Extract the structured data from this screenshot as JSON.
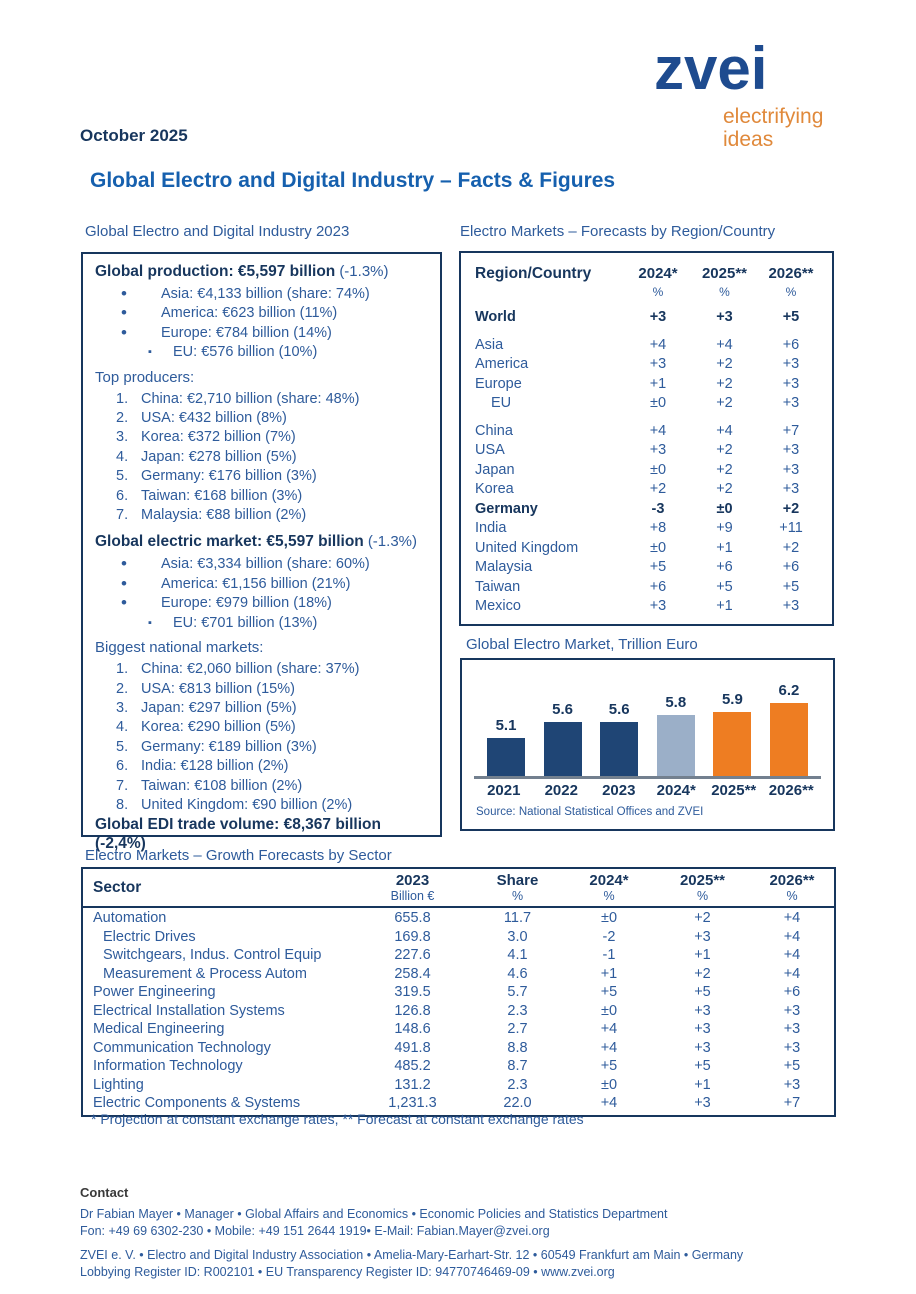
{
  "date": "October 2025",
  "logo": {
    "wordmark": "zvei",
    "tagline": [
      "electrifying",
      "ideas"
    ],
    "blue": "#1E4B8F",
    "orange": "#E0893B"
  },
  "title": "Global Electro and Digital Industry – Facts & Figures",
  "left_panel": {
    "heading": "Global Electro and Digital Industry 2023",
    "sections": [
      {
        "title_bold": "Global production: €5,597 billion",
        "title_suffix": "(-1.3%)",
        "bullets": [
          "Asia: €4,133 billion (share: 74%)",
          "America: €623 billion (11%)",
          "Europe: €784 billion (14%)"
        ],
        "sub_bullets": [
          "EU: €576 billion (10%)"
        ],
        "list_label": "Top producers:",
        "numbered": [
          "China: €2,710 billion (share: 48%)",
          "USA: €432 billion (8%)",
          "Korea: €372 billion (7%)",
          "Japan: €278 billion (5%)",
          "Germany: €176 billion (3%)",
          "Taiwan: €168 billion (3%)",
          "Malaysia: €88 billion (2%)"
        ]
      },
      {
        "title_bold": "Global electric market: €5,597 billion",
        "title_suffix": "(-1.3%)",
        "bullets": [
          "Asia: €3,334 billion (share: 60%)",
          "America: €1,156 billion (21%)",
          "Europe: €979 billion (18%)"
        ],
        "sub_bullets": [
          "EU: €701 billion (13%)"
        ],
        "list_label": "Biggest national markets:",
        "numbered": [
          "China: €2,060 billion (share: 37%)",
          "USA: €813 billion (15%)",
          "Japan: €297 billion (5%)",
          "Korea: €290 billion (5%)",
          "Germany: €189 billion (3%)",
          "India: €128 billion (2%)",
          "Taiwan: €108 billion (2%)",
          "United Kingdom: €90 billion (2%)"
        ]
      }
    ],
    "trade_line": "Global EDI trade volume: €8,367 billion (-2,4%)"
  },
  "region_table": {
    "heading": "Electro Markets – Forecasts by Region/Country",
    "col_label": "Region/Country",
    "year_cols": [
      {
        "label": "2024*",
        "unit": "%"
      },
      {
        "label": "2025**",
        "unit": "%"
      },
      {
        "label": "2026**",
        "unit": "%"
      }
    ],
    "rows": [
      {
        "label": "World",
        "bold": true,
        "gap_before": true,
        "values": [
          "+3",
          "+3",
          "+5"
        ]
      },
      {
        "label": "Asia",
        "gap_before": true,
        "values": [
          "+4",
          "+4",
          "+6"
        ]
      },
      {
        "label": "America",
        "values": [
          "+3",
          "+2",
          "+3"
        ]
      },
      {
        "label": "Europe",
        "values": [
          "+1",
          "+2",
          "+3"
        ]
      },
      {
        "label": "EU",
        "indent": true,
        "values": [
          "±0",
          "+2",
          "+3"
        ]
      },
      {
        "label": "China",
        "gap_before": true,
        "values": [
          "+4",
          "+4",
          "+7"
        ]
      },
      {
        "label": "USA",
        "values": [
          "+3",
          "+2",
          "+3"
        ]
      },
      {
        "label": "Japan",
        "values": [
          "±0",
          "+2",
          "+3"
        ]
      },
      {
        "label": "Korea",
        "values": [
          "+2",
          "+2",
          "+3"
        ]
      },
      {
        "label": "Germany",
        "bold": true,
        "values": [
          "-3",
          "±0",
          "+2"
        ]
      },
      {
        "label": "India",
        "values": [
          "+8",
          "+9",
          "+11"
        ]
      },
      {
        "label": "United Kingdom",
        "values": [
          "±0",
          "+1",
          "+2"
        ]
      },
      {
        "label": "Malaysia",
        "values": [
          "+5",
          "+6",
          "+6"
        ]
      },
      {
        "label": "Taiwan",
        "values": [
          "+6",
          "+5",
          "+5"
        ]
      },
      {
        "label": "Mexico",
        "values": [
          "+3",
          "+1",
          "+3"
        ]
      }
    ]
  },
  "chart_data": {
    "type": "bar",
    "title": "Global Electro Market, Trillion Euro",
    "categories": [
      "2021",
      "2022",
      "2023",
      "2024*",
      "2025**",
      "2026**"
    ],
    "values": [
      5.1,
      5.6,
      5.6,
      5.8,
      5.9,
      6.2
    ],
    "bar_colors": [
      "#1F4575",
      "#1F4575",
      "#1F4575",
      "#9BAFC8",
      "#EE7D22",
      "#EE7D22"
    ],
    "ylim": [
      3.9,
      6.6
    ],
    "grid": false,
    "value_labels": true,
    "legend": "none",
    "source": "Source: National Statistical Offices and ZVEI"
  },
  "sector_table": {
    "heading": "Electro Markets – Growth Forecasts by Sector",
    "col_label": "Sector",
    "columns": [
      {
        "label": "2023",
        "unit": "Billion €"
      },
      {
        "label": "Share",
        "unit": "%"
      },
      {
        "label": "2024*",
        "unit": "%"
      },
      {
        "label": "2025**",
        "unit": "%"
      },
      {
        "label": "2026**",
        "unit": "%"
      }
    ],
    "rows": [
      {
        "label": "Automation",
        "values": [
          "655.8",
          "11.7",
          "±0",
          "+2",
          "+4"
        ]
      },
      {
        "label": "Electric Drives",
        "indent": true,
        "values": [
          "169.8",
          "3.0",
          "-2",
          "+3",
          "+4"
        ]
      },
      {
        "label": "Switchgears, Indus. Control Equip",
        "indent": true,
        "values": [
          "227.6",
          "4.1",
          "-1",
          "+1",
          "+4"
        ]
      },
      {
        "label": "Measurement & Process Autom",
        "indent": true,
        "values": [
          "258.4",
          "4.6",
          "+1",
          "+2",
          "+4"
        ]
      },
      {
        "label": "Power Engineering",
        "values": [
          "319.5",
          "5.7",
          "+5",
          "+5",
          "+6"
        ]
      },
      {
        "label": "Electrical Installation Systems",
        "values": [
          "126.8",
          "2.3",
          "±0",
          "+3",
          "+3"
        ]
      },
      {
        "label": "Medical Engineering",
        "values": [
          "148.6",
          "2.7",
          "+4",
          "+3",
          "+3"
        ]
      },
      {
        "label": "Communication Technology",
        "values": [
          "491.8",
          "8.8",
          "+4",
          "+3",
          "+3"
        ]
      },
      {
        "label": "Information Technology",
        "values": [
          "485.2",
          "8.7",
          "+5",
          "+5",
          "+5"
        ]
      },
      {
        "label": "Lighting",
        "values": [
          "131.2",
          "2.3",
          "±0",
          "+1",
          "+3"
        ]
      },
      {
        "label": "Electric Components & Systems",
        "values": [
          "1,231.3",
          "22.0",
          "+4",
          "+3",
          "+7"
        ]
      }
    ],
    "footnote": "* Projection at constant exchange rates, ** Forecast at constant exchange rates"
  },
  "contact": {
    "heading": "Contact",
    "line1": "Dr Fabian Mayer • Manager • Global Affairs and Economics • Economic Policies and Statistics Department",
    "line2": "Fon: +49 69 6302-230  • Mobile: +49 151 2644 1919• E-Mail: Fabian.Mayer@zvei.org",
    "line3": "ZVEI e. V. • Electro and Digital Industry Association • Amelia-Mary-Earhart-Str. 12 • 60549 Frankfurt am Main • Germany",
    "line4": "Lobbying Register ID: R002101 • EU Transparency Register ID: 94770746469-09 • www.zvei.org"
  },
  "colors": {
    "navy": "#17365D",
    "body_blue": "#2E5B9B",
    "title_blue": "#1660AE",
    "bar_dark": "#1F4575",
    "bar_light": "#9BAFC8",
    "bar_orange": "#EE7D22",
    "axis_gray": "#73808F"
  }
}
